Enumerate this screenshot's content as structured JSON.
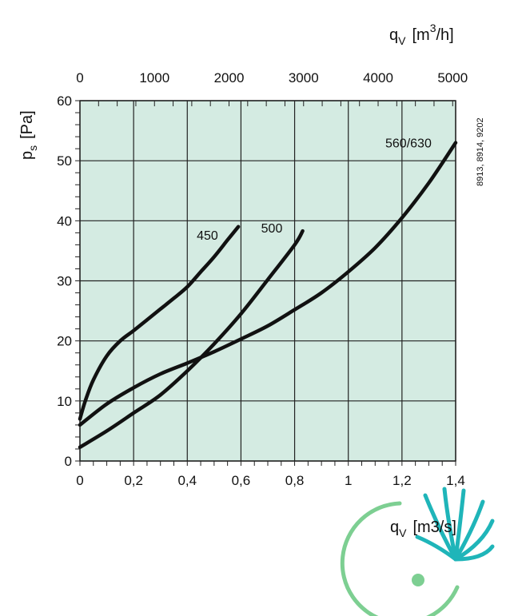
{
  "chart_data": {
    "type": "line",
    "title": "",
    "xlabel_main": "q",
    "xlabel_sub": "V",
    "xlabel_unit": "[m3/s]",
    "x2label_main": "q",
    "x2label_sub": "V",
    "x2label_unit_pre": "[m",
    "x2label_unit_sup": "3",
    "x2label_unit_post": "/h]",
    "ylabel_main": "p",
    "ylabel_sub": "s",
    "ylabel_unit": "[Pa]",
    "xlim": [
      0,
      1.4
    ],
    "ylim": [
      0,
      60
    ],
    "x2lim": [
      0,
      5040
    ],
    "x_ticks": [
      0,
      0.2,
      0.4,
      0.6,
      0.8,
      1,
      1.2,
      1.4
    ],
    "x_tick_labels": [
      "0",
      "0,2",
      "0,4",
      "0,6",
      "0,8",
      "1",
      "1,2",
      "1,4"
    ],
    "y_ticks": [
      0,
      10,
      20,
      30,
      40,
      50,
      60
    ],
    "y_tick_labels": [
      "0",
      "10",
      "20",
      "30",
      "40",
      "50",
      "60"
    ],
    "x2_ticks": [
      0,
      1000,
      2000,
      3000,
      4000,
      5000
    ],
    "x2_tick_labels": [
      "0",
      "1000",
      "2000",
      "3000",
      "4000",
      "5000"
    ],
    "grid": true,
    "side_note": "8913, 8914, 9202",
    "series": [
      {
        "name": "450",
        "x": [
          0,
          0.02,
          0.05,
          0.1,
          0.15,
          0.2,
          0.25,
          0.3,
          0.35,
          0.4,
          0.45,
          0.5,
          0.55,
          0.59
        ],
        "y": [
          7,
          10,
          13.5,
          17.5,
          20,
          21.7,
          23.5,
          25.3,
          27.1,
          29,
          31.5,
          34,
          36.8,
          39
        ]
      },
      {
        "name": "500",
        "x": [
          0,
          0.1,
          0.2,
          0.3,
          0.4,
          0.5,
          0.6,
          0.7,
          0.8,
          0.83
        ],
        "y": [
          2.3,
          5,
          8,
          11,
          15,
          19.5,
          24.5,
          30.2,
          36,
          38.3
        ]
      },
      {
        "name": "560/630",
        "x": [
          0,
          0.1,
          0.2,
          0.3,
          0.4,
          0.5,
          0.6,
          0.7,
          0.8,
          0.9,
          1,
          1.1,
          1.2,
          1.3,
          1.4
        ],
        "y": [
          6,
          9.5,
          12.2,
          14.5,
          16.3,
          18.2,
          20.3,
          22.5,
          25.2,
          28,
          31.5,
          35.5,
          40.5,
          46.3,
          53
        ]
      }
    ]
  },
  "logo": {
    "name": "fan-company-logo",
    "ring_color": "#7dcf92",
    "blade_color": "#1fb5b9",
    "dot_color": "#7dcf92"
  },
  "colors": {
    "plot_bg": "#d4ebe2",
    "grid": "#222222",
    "curve": "#111111"
  }
}
